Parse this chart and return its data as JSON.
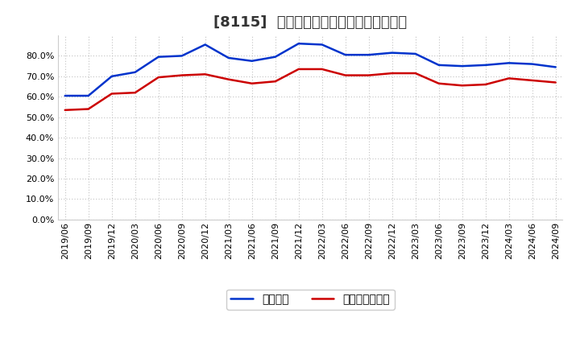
{
  "title": "[8115]  固定比率、固定長期適合率の推移",
  "x_labels": [
    "2019/06",
    "2019/09",
    "2019/12",
    "2020/03",
    "2020/06",
    "2020/09",
    "2020/12",
    "2021/03",
    "2021/06",
    "2021/09",
    "2021/12",
    "2022/03",
    "2022/06",
    "2022/09",
    "2022/12",
    "2023/03",
    "2023/06",
    "2023/09",
    "2023/12",
    "2024/03",
    "2024/06",
    "2024/09"
  ],
  "fixed_ratio": [
    60.5,
    60.5,
    70.0,
    72.0,
    79.5,
    80.0,
    85.5,
    79.0,
    77.5,
    79.5,
    86.0,
    85.5,
    80.5,
    80.5,
    81.5,
    81.0,
    75.5,
    75.0,
    75.5,
    76.5,
    76.0,
    74.5
  ],
  "fixed_long_ratio": [
    53.5,
    54.0,
    61.5,
    62.0,
    69.5,
    70.5,
    71.0,
    68.5,
    66.5,
    67.5,
    73.5,
    73.5,
    70.5,
    70.5,
    71.5,
    71.5,
    66.5,
    65.5,
    66.0,
    69.0,
    68.0,
    67.0
  ],
  "blue_color": "#0033CC",
  "red_color": "#CC0000",
  "bg_color": "#FFFFFF",
  "plot_bg_color": "#FFFFFF",
  "grid_color": "#BBBBBB",
  "ylim": [
    0,
    90
  ],
  "ytick_values": [
    0,
    10,
    20,
    30,
    40,
    50,
    60,
    70,
    80
  ],
  "legend_fixed_ratio": "固定比率",
  "legend_fixed_long_ratio": "固定長期適合率",
  "title_fontsize": 13,
  "tick_fontsize": 8,
  "legend_fontsize": 10
}
